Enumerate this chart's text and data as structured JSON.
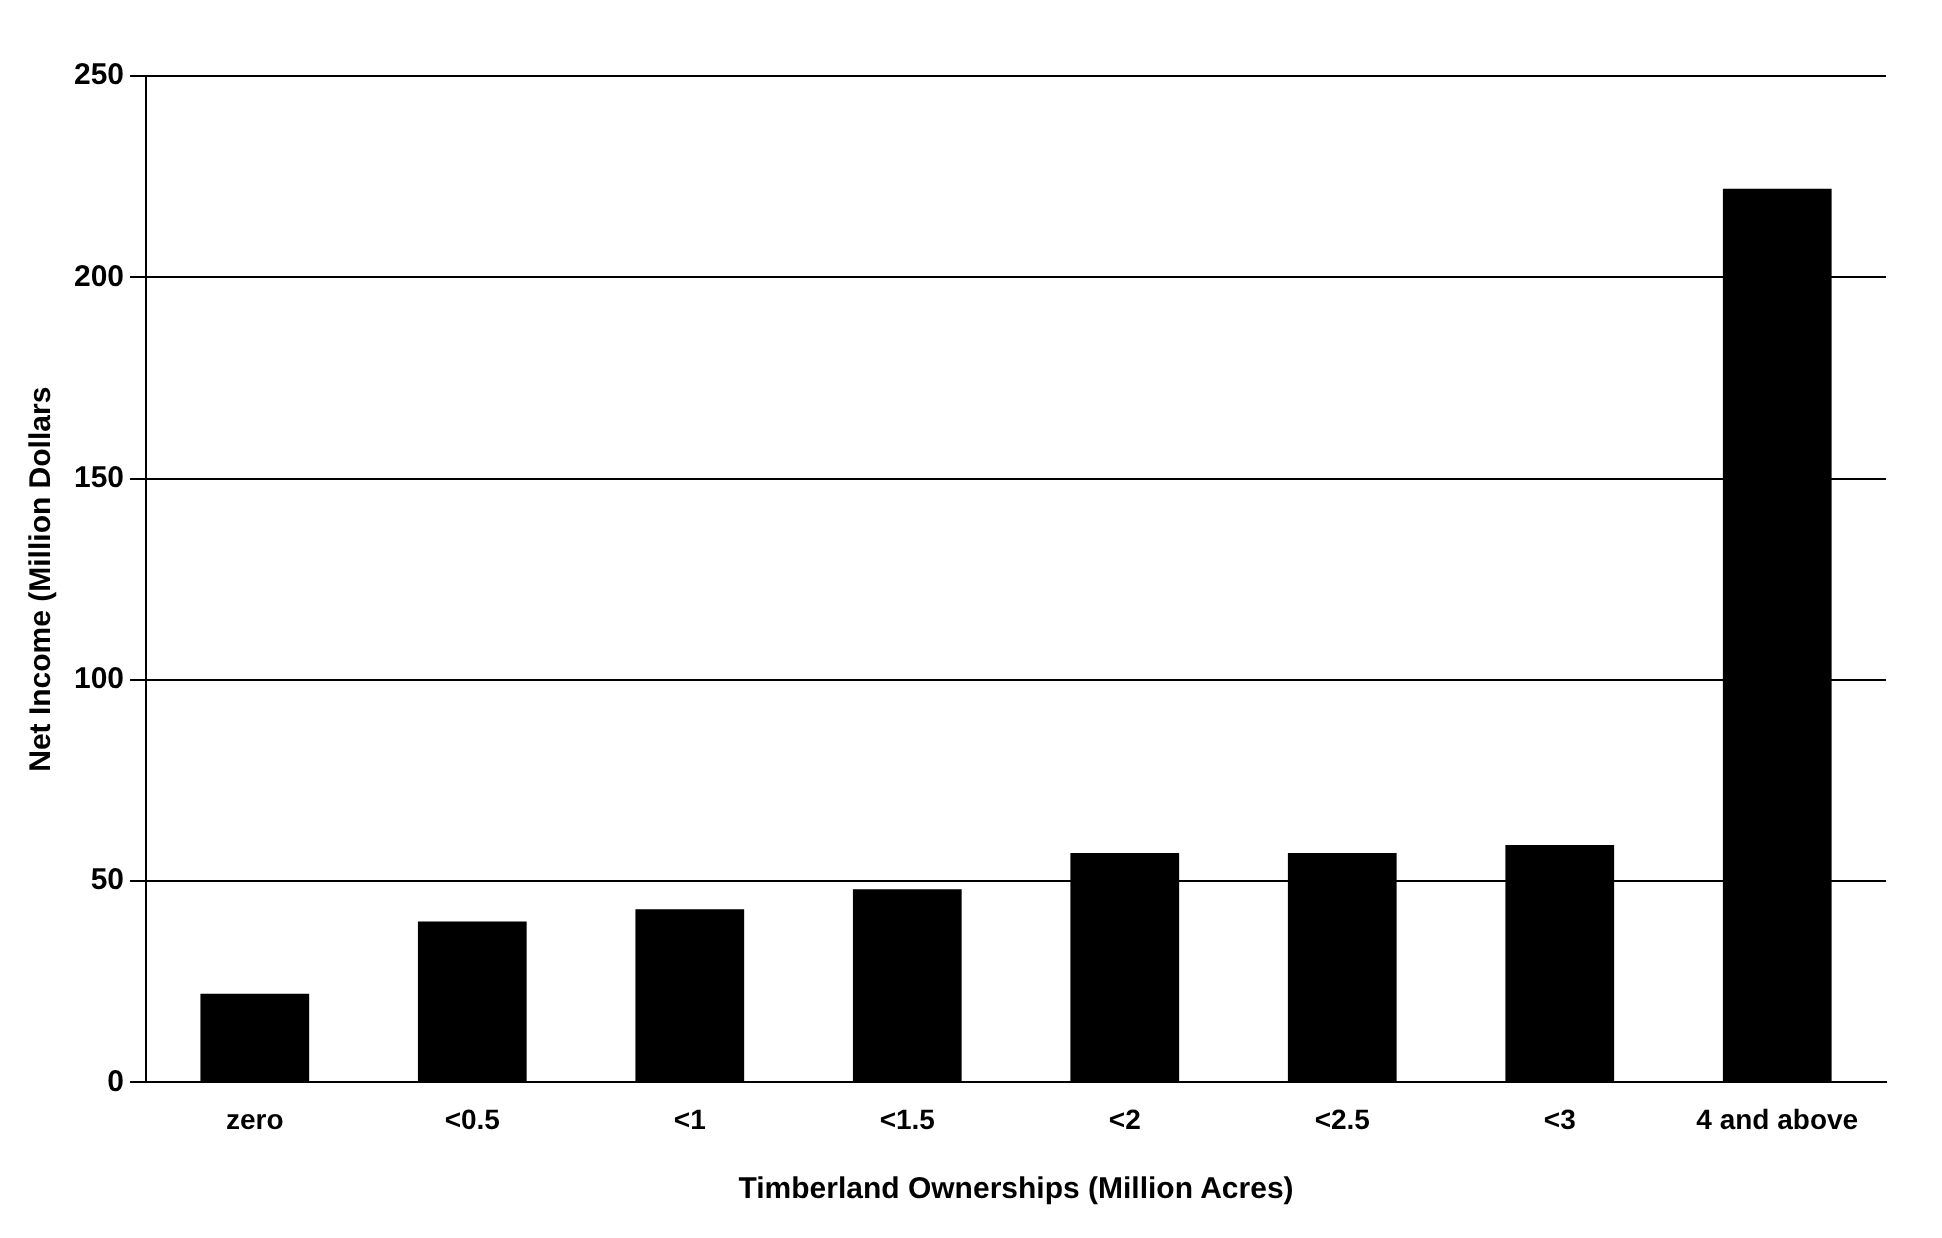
{
  "chart_data": {
    "type": "bar",
    "xlabel": "Timberland Ownerships (Million Acres)",
    "ylabel": "Net Income (Million Dollars",
    "categories": [
      "zero",
      "<0.5",
      "<1",
      "<1.5",
      "<2",
      "<2.5",
      "<3",
      "4 and above"
    ],
    "values": [
      22,
      40,
      43,
      48,
      57,
      57,
      59,
      222
    ],
    "color": "#000000",
    "ylim": [
      0,
      250
    ],
    "yticks": [
      0,
      50,
      100,
      150,
      200,
      250
    ],
    "grid": "y"
  }
}
